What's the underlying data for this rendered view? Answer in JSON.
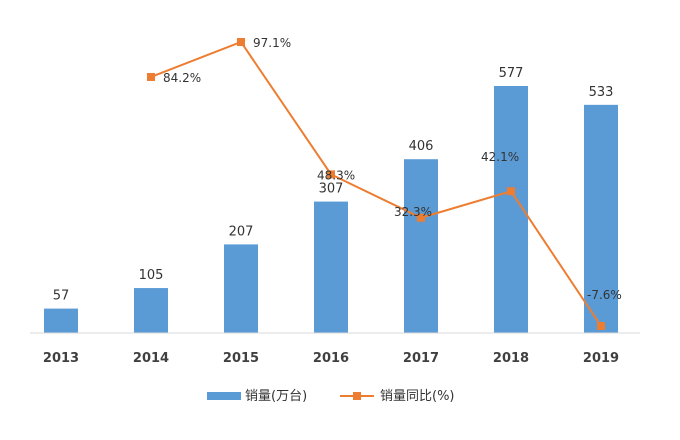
{
  "chart_data": {
    "type": "bar",
    "categories": [
      "2013",
      "2014",
      "2015",
      "2016",
      "2017",
      "2018",
      "2019"
    ],
    "series": [
      {
        "name": "销量(万台)",
        "type": "bar",
        "values": [
          57,
          105,
          207,
          307,
          406,
          577,
          533
        ],
        "labels": [
          "57",
          "105",
          "207",
          "307",
          "406",
          "577",
          "533"
        ],
        "color": "#5b9bd5"
      },
      {
        "name": "销量同比(%)",
        "type": "line",
        "values": [
          null,
          84.2,
          97.1,
          48.3,
          32.3,
          42.1,
          -7.6
        ],
        "labels": [
          "",
          "84.2%",
          "97.1%",
          "48.3%",
          "32.3%",
          "42.1%",
          "-7.6%"
        ],
        "color": "#ed7d31"
      }
    ],
    "bar_axis_range": [
      0,
      600
    ],
    "line_axis_range": [
      -10,
      100
    ],
    "axis_labels_visible": false,
    "grid": false,
    "legend_position": "bottom"
  }
}
